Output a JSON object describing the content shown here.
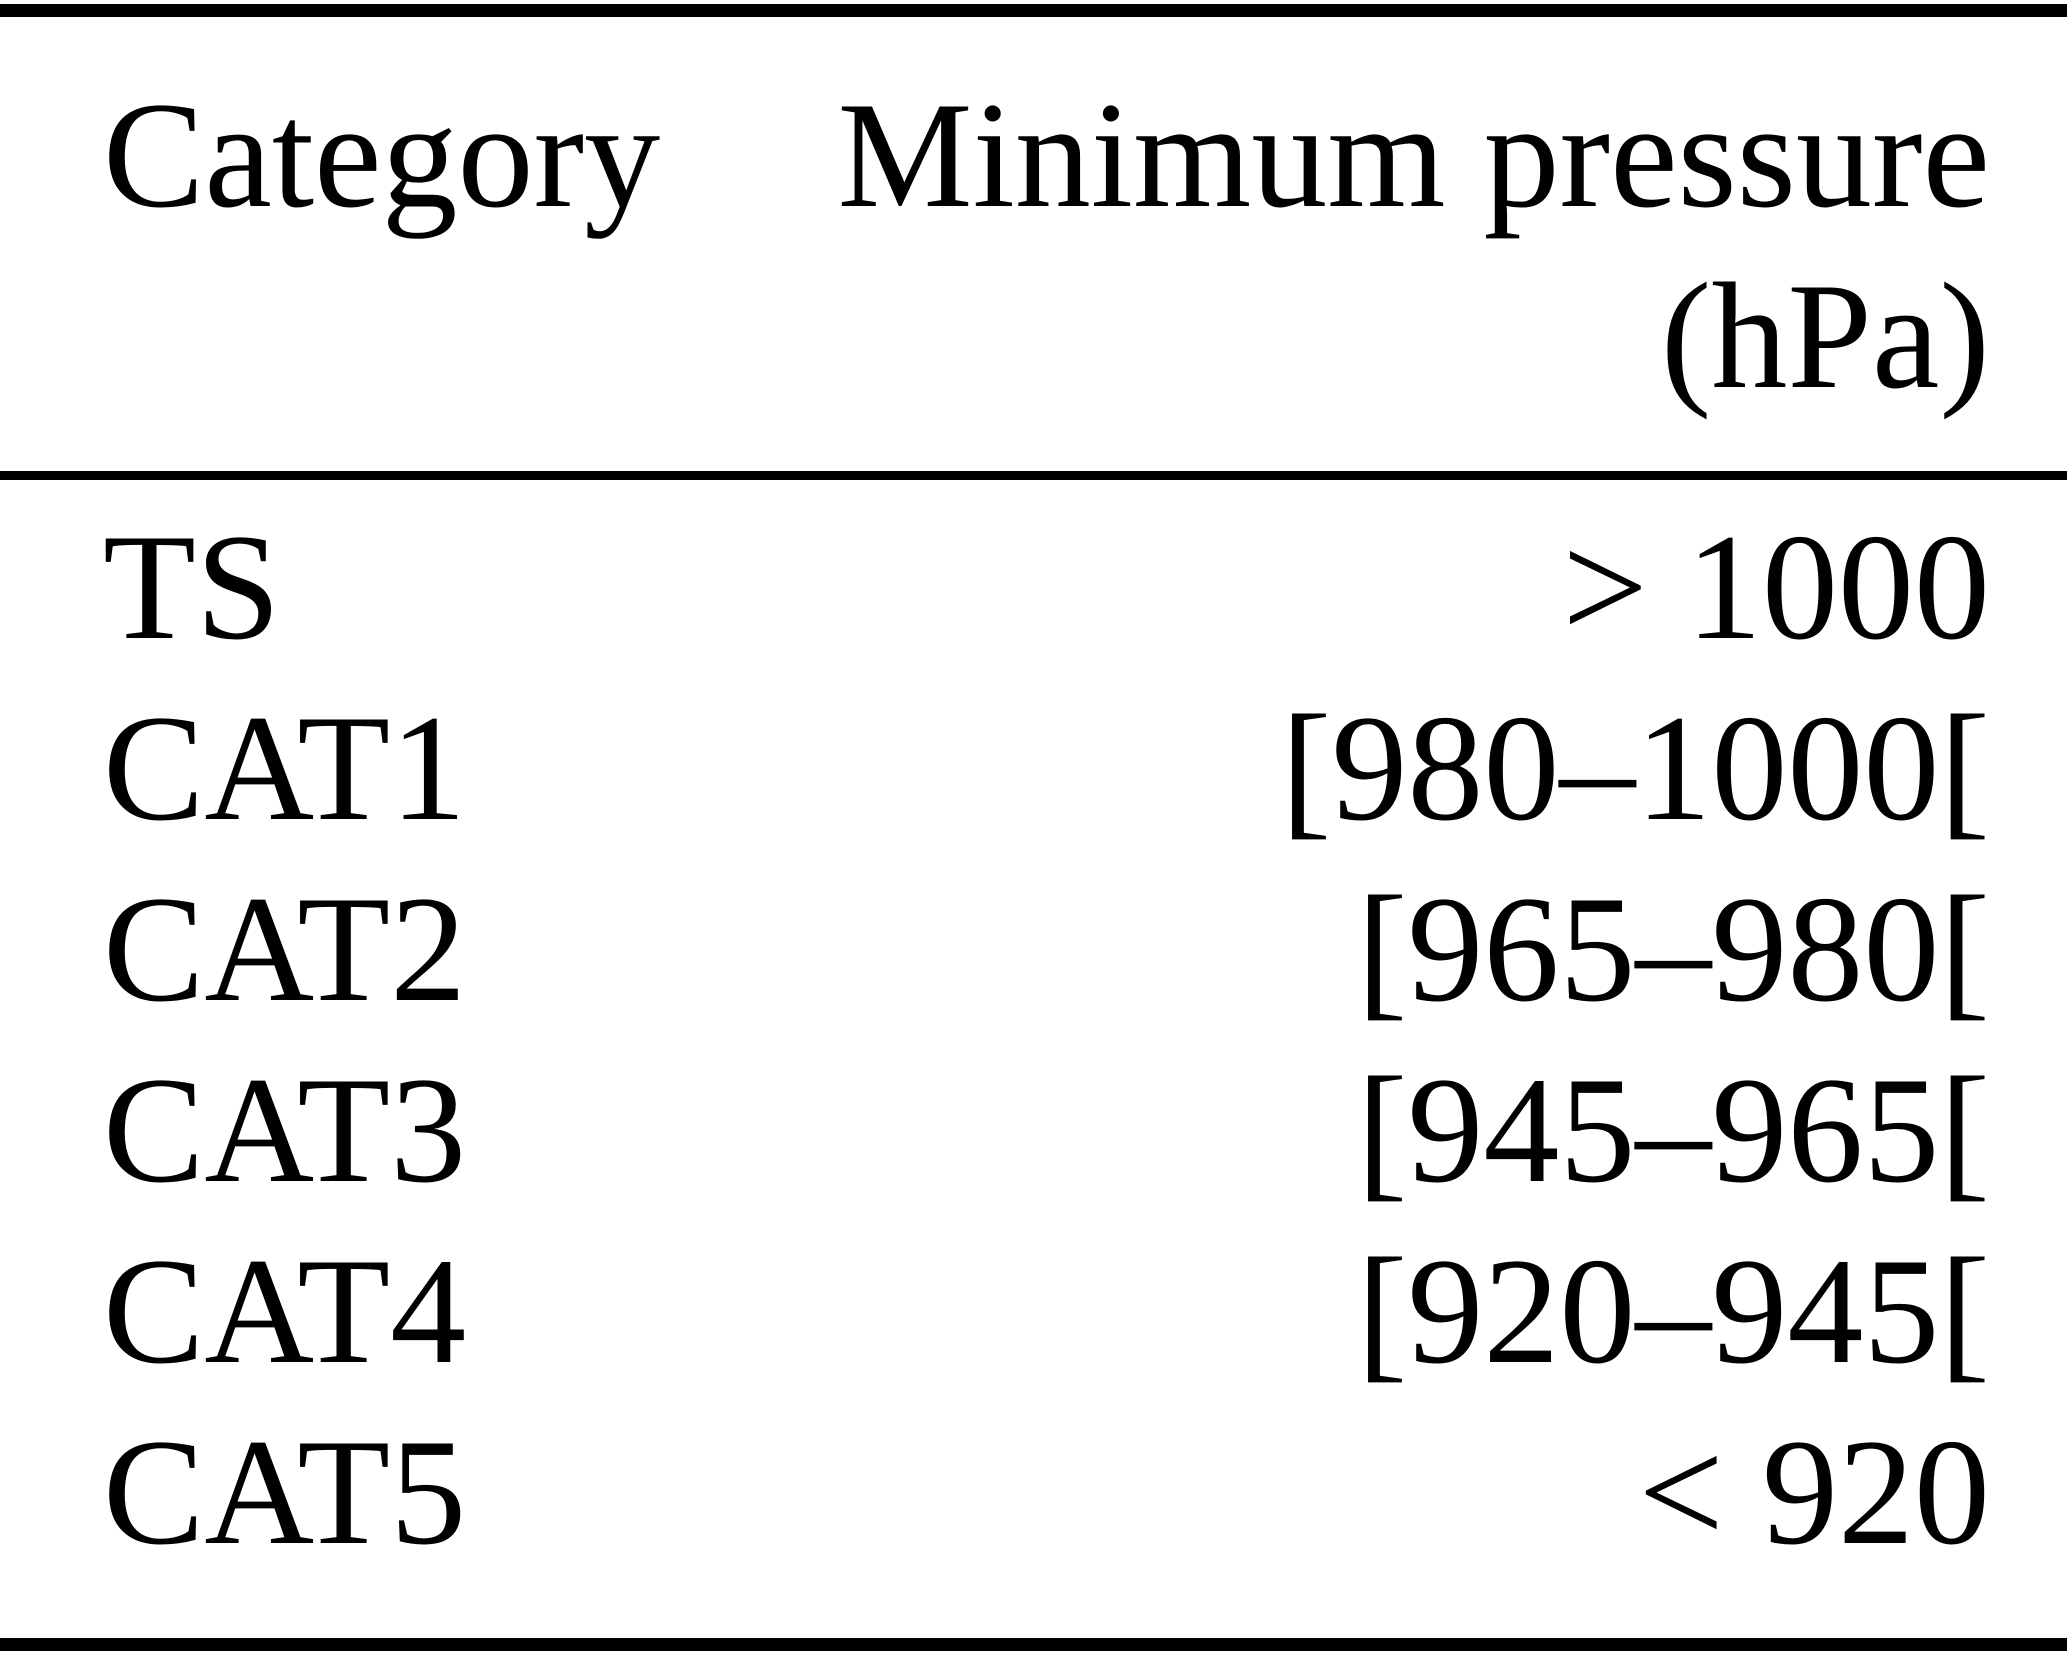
{
  "table": {
    "header": {
      "category": "Category",
      "pressure_line1": "Minimum pressure",
      "pressure_line2": "(hPa)"
    },
    "rows": [
      {
        "category": "TS",
        "pressure": "> 1000"
      },
      {
        "category": "CAT1",
        "pressure": "[980–1000["
      },
      {
        "category": "CAT2",
        "pressure": "[965–980["
      },
      {
        "category": "CAT3",
        "pressure": "[945–965["
      },
      {
        "category": "CAT4",
        "pressure": "[920–945["
      },
      {
        "category": "CAT5",
        "pressure": "< 920"
      }
    ]
  },
  "colors": {
    "background": "#ffffff",
    "text": "#000000",
    "rule": "#000000"
  }
}
